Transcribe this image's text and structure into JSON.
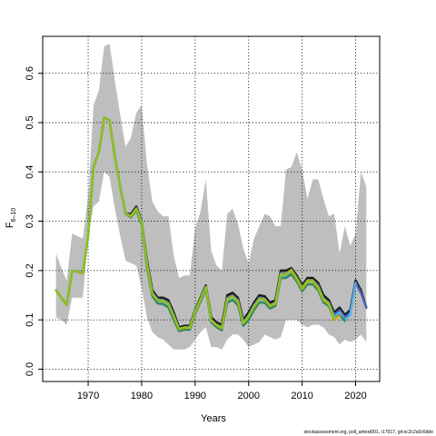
{
  "chart_data": {
    "type": "line",
    "title": "",
    "xlabel": "Years",
    "ylabel": "F",
    "ylabel_subscript": "6–10",
    "xlim": [
      1961.5,
      2024.5
    ],
    "ylim": [
      -0.025,
      0.675
    ],
    "grid": true,
    "grid_style": "dotted",
    "x_ticks": [
      1970,
      1980,
      1990,
      2000,
      2010,
      2020
    ],
    "x_tick_labels": [
      "1970",
      "1980",
      "1990",
      "2000",
      "2010",
      "2020"
    ],
    "y_ticks": [
      0.0,
      0.1,
      0.2,
      0.3,
      0.4,
      0.5,
      0.6
    ],
    "y_tick_labels": [
      "0.0",
      "0.1",
      "0.2",
      "0.3",
      "0.4",
      "0.5",
      "0.6"
    ],
    "band": {
      "color": "#bebebe",
      "x": [
        1964,
        1965,
        1966,
        1967,
        1968,
        1969,
        1970,
        1971,
        1972,
        1973,
        1974,
        1975,
        1976,
        1977,
        1978,
        1979,
        1980,
        1981,
        1982,
        1983,
        1984,
        1985,
        1986,
        1987,
        1988,
        1989,
        1990,
        1991,
        1992,
        1993,
        1994,
        1995,
        1996,
        1997,
        1998,
        1999,
        2000,
        2001,
        2002,
        2003,
        2004,
        2005,
        2006,
        2007,
        2008,
        2009,
        2010,
        2011,
        2012,
        2013,
        2014,
        2015,
        2016,
        2017,
        2018,
        2019,
        2020,
        2021,
        2022
      ],
      "upper": [
        0.235,
        0.205,
        0.18,
        0.275,
        0.27,
        0.265,
        0.35,
        0.535,
        0.565,
        0.655,
        0.66,
        0.585,
        0.515,
        0.45,
        0.47,
        0.52,
        0.535,
        0.415,
        0.34,
        0.32,
        0.31,
        0.31,
        0.23,
        0.185,
        0.19,
        0.19,
        0.285,
        0.32,
        0.385,
        0.24,
        0.21,
        0.2,
        0.315,
        0.325,
        0.295,
        0.245,
        0.215,
        0.265,
        0.29,
        0.315,
        0.31,
        0.29,
        0.29,
        0.405,
        0.41,
        0.44,
        0.405,
        0.345,
        0.385,
        0.385,
        0.345,
        0.31,
        0.315,
        0.235,
        0.29,
        0.25,
        0.275,
        0.4,
        0.37
      ],
      "lower": [
        0.105,
        0.1,
        0.09,
        0.145,
        0.145,
        0.145,
        0.27,
        0.33,
        0.34,
        0.4,
        0.39,
        0.325,
        0.27,
        0.22,
        0.215,
        0.21,
        0.165,
        0.105,
        0.075,
        0.065,
        0.06,
        0.05,
        0.04,
        0.04,
        0.04,
        0.045,
        0.06,
        0.075,
        0.085,
        0.045,
        0.045,
        0.04,
        0.06,
        0.07,
        0.07,
        0.06,
        0.045,
        0.05,
        0.055,
        0.07,
        0.065,
        0.06,
        0.065,
        0.1,
        0.1,
        0.1,
        0.09,
        0.085,
        0.09,
        0.09,
        0.085,
        0.07,
        0.065,
        0.05,
        0.06,
        0.055,
        0.06,
        0.07,
        0.055
      ]
    },
    "series": [
      {
        "color": "#1a1a1a",
        "x": [
          1964,
          1966,
          1967,
          1969,
          1970,
          1971,
          1972,
          1973,
          1974,
          1975,
          1976,
          1977,
          1978,
          1979,
          1980,
          1981,
          1982,
          1983,
          1984,
          1985,
          1986,
          1987,
          1988,
          1989,
          1990,
          1991,
          1992,
          1993,
          1994,
          1995,
          1996,
          1997,
          1998,
          1999,
          2000,
          2001,
          2002,
          2003,
          2004,
          2005,
          2006,
          2007,
          2008,
          2009,
          2010,
          2011,
          2012,
          2013,
          2014,
          2015,
          2016,
          2017,
          2018,
          2019,
          2020,
          2021,
          2022
        ],
        "y": [
          0.16,
          0.13,
          0.2,
          0.195,
          0.27,
          0.41,
          0.44,
          0.51,
          0.505,
          0.43,
          0.37,
          0.315,
          0.315,
          0.33,
          0.3,
          0.22,
          0.16,
          0.145,
          0.145,
          0.14,
          0.115,
          0.085,
          0.088,
          0.088,
          0.12,
          0.145,
          0.17,
          0.105,
          0.095,
          0.09,
          0.15,
          0.155,
          0.145,
          0.1,
          0.115,
          0.135,
          0.15,
          0.148,
          0.135,
          0.14,
          0.2,
          0.2,
          0.205,
          0.19,
          0.17,
          0.185,
          0.185,
          0.175,
          0.15,
          0.14,
          0.115,
          0.125,
          0.11,
          0.12,
          0.18,
          0.16,
          0.125
        ]
      },
      {
        "color": "#4b5fb5",
        "x": [
          1964,
          1966,
          1967,
          1969,
          1970,
          1971,
          1972,
          1973,
          1974,
          1975,
          1976,
          1977,
          1978,
          1979,
          1980,
          1981,
          1982,
          1983,
          1984,
          1985,
          1986,
          1987,
          1988,
          1989,
          1990,
          1991,
          1992,
          1993,
          1994,
          1995,
          1996,
          1997,
          1998,
          1999,
          2000,
          2001,
          2002,
          2003,
          2004,
          2005,
          2006,
          2007,
          2008,
          2009,
          2010,
          2011,
          2012,
          2013,
          2014,
          2015,
          2016,
          2017,
          2018,
          2019,
          2020,
          2021,
          2022
        ],
        "y": [
          0.16,
          0.13,
          0.2,
          0.195,
          0.27,
          0.41,
          0.44,
          0.51,
          0.505,
          0.43,
          0.37,
          0.315,
          0.312,
          0.327,
          0.298,
          0.215,
          0.155,
          0.142,
          0.14,
          0.135,
          0.11,
          0.082,
          0.085,
          0.085,
          0.118,
          0.142,
          0.167,
          0.1,
          0.09,
          0.085,
          0.145,
          0.15,
          0.14,
          0.095,
          0.11,
          0.13,
          0.145,
          0.143,
          0.13,
          0.135,
          0.195,
          0.195,
          0.2,
          0.185,
          0.165,
          0.18,
          0.18,
          0.17,
          0.143,
          0.135,
          0.11,
          0.12,
          0.105,
          0.115,
          0.175,
          0.155,
          0.125
        ]
      },
      {
        "color": "#56b4e9",
        "x": [
          1964,
          1966,
          1967,
          1969,
          1970,
          1971,
          1972,
          1973,
          1974,
          1975,
          1976,
          1977,
          1978,
          1979,
          1980,
          1981,
          1982,
          1983,
          1984,
          1985,
          1986,
          1987,
          1988,
          1989,
          1990,
          1991,
          1992,
          1993,
          1994,
          1995,
          1996,
          1997,
          1998,
          1999,
          2000,
          2001,
          2002,
          2003,
          2004,
          2005,
          2006,
          2007,
          2008,
          2009,
          2010,
          2011,
          2012,
          2013,
          2014,
          2015,
          2016,
          2017,
          2018,
          2019,
          2020
        ],
        "y": [
          0.16,
          0.13,
          0.2,
          0.195,
          0.27,
          0.41,
          0.44,
          0.51,
          0.505,
          0.43,
          0.37,
          0.315,
          0.31,
          0.325,
          0.296,
          0.21,
          0.152,
          0.138,
          0.136,
          0.13,
          0.105,
          0.08,
          0.083,
          0.083,
          0.115,
          0.14,
          0.165,
          0.098,
          0.088,
          0.082,
          0.14,
          0.145,
          0.135,
          0.092,
          0.105,
          0.125,
          0.14,
          0.14,
          0.127,
          0.132,
          0.19,
          0.19,
          0.197,
          0.182,
          0.162,
          0.177,
          0.177,
          0.165,
          0.14,
          0.133,
          0.105,
          0.115,
          0.1,
          0.11,
          0.175
        ]
      },
      {
        "color": "#2e8b57",
        "x": [
          1964,
          1966,
          1967,
          1969,
          1970,
          1971,
          1972,
          1973,
          1974,
          1975,
          1976,
          1977,
          1978,
          1979,
          1980,
          1981,
          1982,
          1983,
          1984,
          1985,
          1986,
          1987,
          1988,
          1989,
          1990,
          1991,
          1992,
          1993,
          1994,
          1995,
          1996,
          1997,
          1998,
          1999,
          2000,
          2001,
          2002,
          2003,
          2004,
          2005,
          2006,
          2007,
          2008,
          2009,
          2010,
          2011,
          2012,
          2013,
          2014,
          2015,
          2016,
          2017,
          2018
        ],
        "y": [
          0.16,
          0.13,
          0.2,
          0.195,
          0.27,
          0.41,
          0.44,
          0.51,
          0.505,
          0.43,
          0.37,
          0.315,
          0.308,
          0.322,
          0.293,
          0.205,
          0.148,
          0.133,
          0.132,
          0.125,
          0.1,
          0.077,
          0.08,
          0.08,
          0.112,
          0.137,
          0.162,
          0.095,
          0.085,
          0.079,
          0.135,
          0.14,
          0.13,
          0.088,
          0.1,
          0.12,
          0.135,
          0.135,
          0.123,
          0.128,
          0.185,
          0.185,
          0.193,
          0.178,
          0.158,
          0.172,
          0.172,
          0.16,
          0.135,
          0.128,
          0.1,
          0.11,
          0.098
        ]
      },
      {
        "color": "#e6a817",
        "x": [
          1964,
          1966,
          1967,
          1969,
          1970,
          1971,
          1972,
          1973,
          1974,
          1975,
          1976,
          1977,
          1978,
          1979,
          1980,
          1981,
          1982,
          1983,
          1984,
          1985,
          1986,
          1987,
          1988,
          1989,
          1990,
          1991,
          1992,
          1993,
          1994,
          1995,
          1996,
          1997,
          1998,
          1999,
          2000,
          2001,
          2002,
          2003,
          2004,
          2005,
          2006,
          2007,
          2008,
          2009,
          2010,
          2011,
          2012,
          2013,
          2014,
          2015,
          2016,
          2017
        ],
        "y": [
          0.16,
          0.13,
          0.2,
          0.195,
          0.27,
          0.41,
          0.44,
          0.51,
          0.505,
          0.43,
          0.37,
          0.315,
          0.31,
          0.325,
          0.297,
          0.212,
          0.153,
          0.14,
          0.138,
          0.132,
          0.107,
          0.081,
          0.084,
          0.084,
          0.116,
          0.141,
          0.166,
          0.099,
          0.089,
          0.083,
          0.142,
          0.147,
          0.137,
          0.093,
          0.107,
          0.127,
          0.142,
          0.141,
          0.128,
          0.133,
          0.192,
          0.192,
          0.2,
          0.183,
          0.163,
          0.178,
          0.178,
          0.165,
          0.14,
          0.132,
          0.1,
          0.108
        ]
      },
      {
        "color": "#8cbf26",
        "x": [
          1964,
          1966,
          1967,
          1969,
          1970,
          1971,
          1972,
          1973,
          1974,
          1975,
          1976,
          1977,
          1978,
          1979,
          1980,
          1981,
          1982,
          1983,
          1984,
          1985,
          1986,
          1987,
          1988,
          1989,
          1990,
          1991,
          1992,
          1993,
          1994,
          1995,
          1996,
          1997,
          1998,
          1999,
          2000,
          2001,
          2002,
          2003,
          2004,
          2005,
          2006,
          2007,
          2008,
          2009,
          2010,
          2011,
          2012,
          2013,
          2014,
          2015,
          2016
        ],
        "y": [
          0.16,
          0.13,
          0.2,
          0.195,
          0.27,
          0.41,
          0.44,
          0.51,
          0.505,
          0.43,
          0.37,
          0.315,
          0.311,
          0.326,
          0.298,
          0.213,
          0.154,
          0.14,
          0.139,
          0.133,
          0.108,
          0.082,
          0.085,
          0.085,
          0.117,
          0.142,
          0.167,
          0.1,
          0.09,
          0.084,
          0.143,
          0.148,
          0.138,
          0.094,
          0.108,
          0.128,
          0.143,
          0.142,
          0.129,
          0.134,
          0.193,
          0.193,
          0.202,
          0.185,
          0.165,
          0.18,
          0.18,
          0.167,
          0.142,
          0.134,
          0.102
        ]
      }
    ]
  },
  "footer_text": "stockassessment.org, poll_antest001, r17917, git:ec2c2a0c6dde"
}
